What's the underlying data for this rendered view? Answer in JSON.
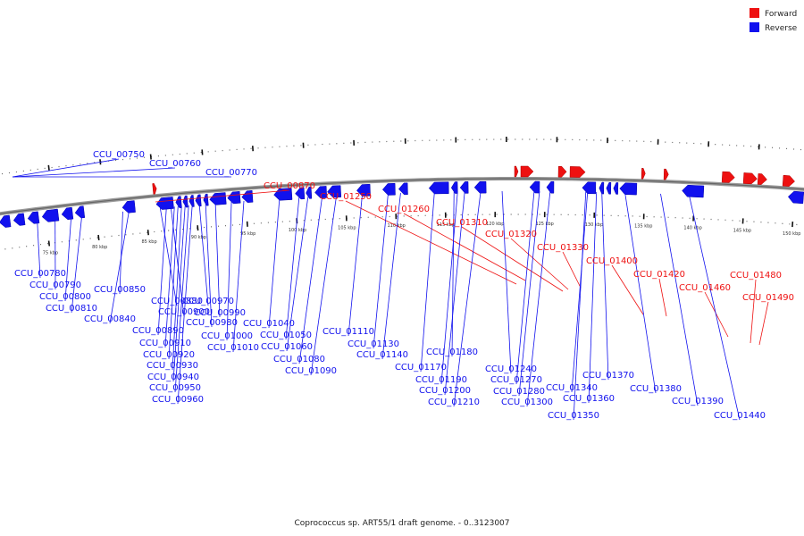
{
  "colors": {
    "forward": "#ee1111",
    "reverse": "#1111ee",
    "backbone": "#888888"
  },
  "legend": [
    {
      "key": "forward",
      "label": "Forward"
    },
    {
      "key": "reverse",
      "label": "Reverse"
    }
  ],
  "caption": "Coprococcus sp. ART55/1 draft genome. - 0..3123007",
  "ticks": [
    "75 kbp",
    "80 kbp",
    "85 kbp",
    "90 kbp",
    "95 kbp",
    "100 kbp",
    "105 kbp",
    "110 kbp",
    "115 kbp",
    "120 kbp",
    "125 kbp",
    "130 kbp",
    "135 kbp",
    "140 kbp",
    "145 kbp",
    "150 kbp"
  ],
  "forward_genes": [
    "CCU_00870",
    "CCU_01250",
    "CCU_01260",
    "CCU_01310",
    "CCU_01320",
    "CCU_01330",
    "CCU_01400",
    "CCU_01420",
    "CCU_01460",
    "CCU_01480",
    "CCU_01490"
  ],
  "reverse_genes_outer": [
    "CCU_00750",
    "CCU_00760",
    "CCU_00770"
  ],
  "reverse_genes": [
    "CCU_00780",
    "CCU_00790",
    "CCU_00800",
    "CCU_00810",
    "CCU_00840",
    "CCU_00850",
    "CCU_00880",
    "CCU_00890",
    "CCU_00900",
    "CCU_00910",
    "CCU_00920",
    "CCU_00930",
    "CCU_00940",
    "CCU_00950",
    "CCU_00960",
    "CCU_00970",
    "CCU_00980",
    "CCU_00990",
    "CCU_01000",
    "CCU_01010",
    "CCU_01040",
    "CCU_01050",
    "CCU_01060",
    "CCU_01080",
    "CCU_01090",
    "CCU_01110",
    "CCU_01130",
    "CCU_01140",
    "CCU_01170",
    "CCU_01180",
    "CCU_01190",
    "CCU_01200",
    "CCU_01210",
    "CCU_01240",
    "CCU_01270",
    "CCU_01280",
    "CCU_01300",
    "CCU_01340",
    "CCU_01350",
    "CCU_01360",
    "CCU_01370",
    "CCU_01380",
    "CCU_01390",
    "CCU_01440"
  ]
}
